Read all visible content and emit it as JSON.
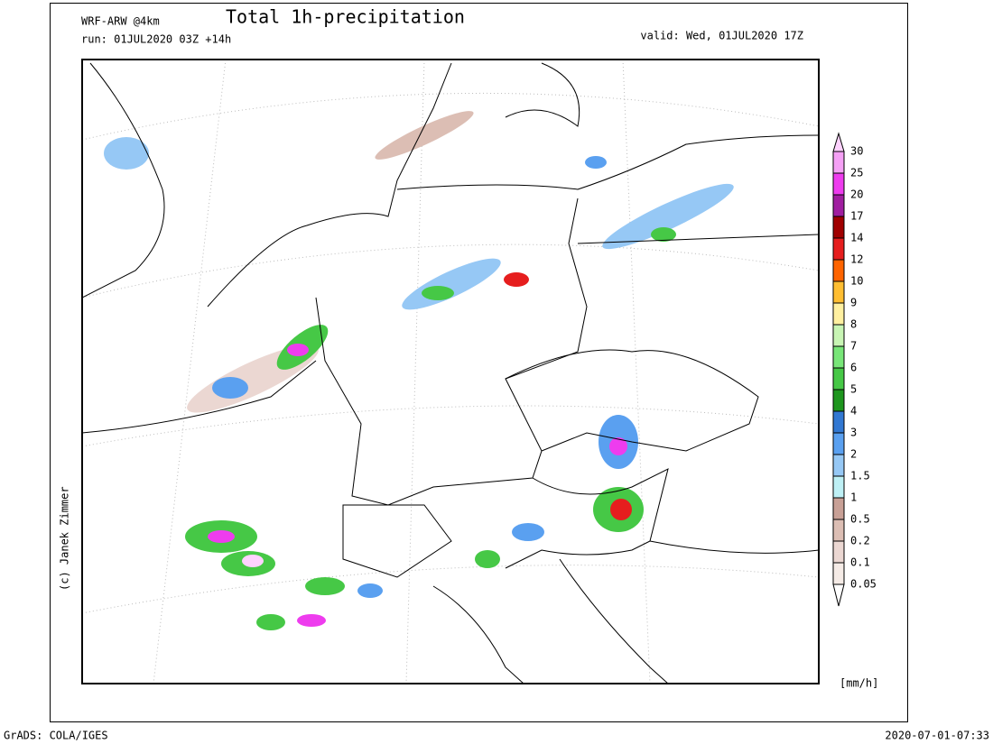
{
  "header": {
    "model": "WRF-ARW @4km",
    "title": "Total 1h-precipitation",
    "run": "run: 01JUL2020 03Z +14h",
    "valid": "valid: Wed, 01JUL2020 17Z"
  },
  "credit": "(c) Janek Zimmer",
  "legend": {
    "unit": "[mm/h]",
    "levels": [
      "30",
      "25",
      "20",
      "17",
      "14",
      "12",
      "10",
      "9",
      "8",
      "7",
      "6",
      "5",
      "4",
      "3",
      "2",
      "1.5",
      "1",
      "0.5",
      "0.2",
      "0.1",
      "0.05"
    ],
    "colors": [
      "#ffd2ff",
      "#f5a0f5",
      "#ee3cee",
      "#a01ea0",
      "#a00000",
      "#e61e1e",
      "#ff6400",
      "#ffbe32",
      "#fff0a0",
      "#c8f5b4",
      "#78e678",
      "#46c846",
      "#1e961e",
      "#3278d2",
      "#5aa0f0",
      "#96c8f5",
      "#bef0f5",
      "#c8a096",
      "#dcbeb4",
      "#ebd7d2",
      "#f5ebe6",
      "#ffffff"
    ]
  },
  "footer": {
    "software": "GrADS: COLA/IGES",
    "timestamp": "2020-07-01-07:33"
  }
}
